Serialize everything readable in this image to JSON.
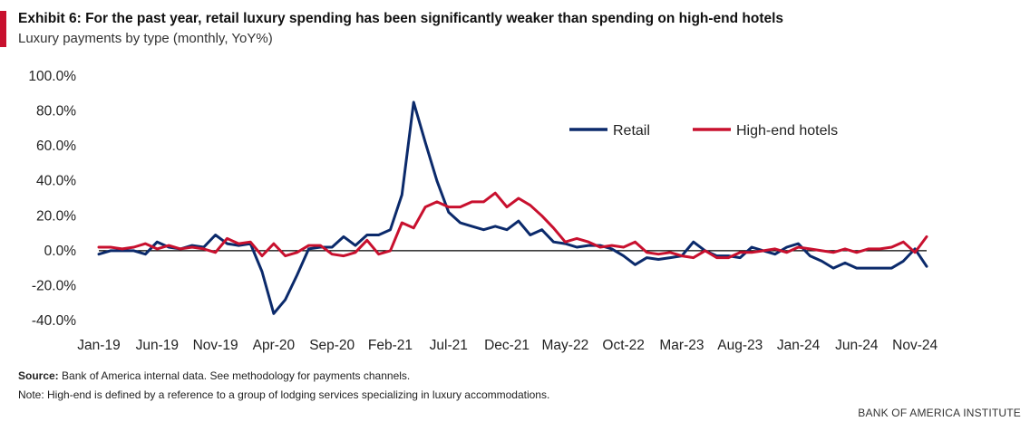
{
  "header": {
    "title": "Exhibit 6: For the past year, retail luxury spending has been significantly weaker than spending on high-end hotels",
    "subtitle": "Luxury payments by type (monthly, YoY%)"
  },
  "footer": {
    "source_label": "Source:",
    "source_text": " Bank of America internal data. See methodology for payments channels.",
    "note": "Note: High-end is defined by a reference to a group of lodging services specializing in luxury accommodations.",
    "brand": "BANK OF AMERICA INSTITUTE"
  },
  "colors": {
    "accent": "#c8102e",
    "retail": "#0b2a6b",
    "hotels": "#c8102e",
    "zero_line": "#000000"
  },
  "chart_data": {
    "type": "line",
    "title": "Exhibit 6: For the past year, retail luxury spending has been significantly weaker than spending on high-end hotels",
    "subtitle": "Luxury payments by type (monthly, YoY%)",
    "xlabel": "",
    "ylabel": "",
    "ylim": [
      -40,
      100
    ],
    "y_ticks": [
      -40,
      -20,
      0,
      20,
      40,
      60,
      80,
      100
    ],
    "y_tick_labels": [
      "-40.0%",
      "-20.0%",
      "0.0%",
      "20.0%",
      "40.0%",
      "60.0%",
      "80.0%",
      "100.0%"
    ],
    "x_tick_labels": [
      "Jan-19",
      "Jun-19",
      "Nov-19",
      "Apr-20",
      "Sep-20",
      "Feb-21",
      "Jul-21",
      "Dec-21",
      "May-22",
      "Oct-22",
      "Mar-23",
      "Aug-23",
      "Jan-24",
      "Jun-24",
      "Nov-24"
    ],
    "x_tick_every": 5,
    "x": [
      "Jan-19",
      "Feb-19",
      "Mar-19",
      "Apr-19",
      "May-19",
      "Jun-19",
      "Jul-19",
      "Aug-19",
      "Sep-19",
      "Oct-19",
      "Nov-19",
      "Dec-19",
      "Jan-20",
      "Feb-20",
      "Mar-20",
      "Apr-20",
      "May-20",
      "Jun-20",
      "Jul-20",
      "Aug-20",
      "Sep-20",
      "Oct-20",
      "Nov-20",
      "Dec-20",
      "Jan-21",
      "Feb-21",
      "Mar-21",
      "Apr-21",
      "May-21",
      "Jun-21",
      "Jul-21",
      "Aug-21",
      "Sep-21",
      "Oct-21",
      "Nov-21",
      "Dec-21",
      "Jan-22",
      "Feb-22",
      "Mar-22",
      "Apr-22",
      "May-22",
      "Jun-22",
      "Jul-22",
      "Aug-22",
      "Sep-22",
      "Oct-22",
      "Nov-22",
      "Dec-22",
      "Jan-23",
      "Feb-23",
      "Mar-23",
      "Apr-23",
      "May-23",
      "Jun-23",
      "Jul-23",
      "Aug-23",
      "Sep-23",
      "Oct-23",
      "Nov-23",
      "Dec-23",
      "Jan-24",
      "Feb-24",
      "Mar-24",
      "Apr-24",
      "May-24",
      "Jun-24",
      "Jul-24",
      "Aug-24",
      "Sep-24",
      "Oct-24",
      "Nov-24",
      "Dec-24"
    ],
    "legend": "top-right",
    "grid": false,
    "series": [
      {
        "name": "Retail",
        "color": "#0b2a6b",
        "values": [
          -2,
          0,
          0,
          0,
          -2,
          5,
          2,
          1,
          3,
          2,
          9,
          4,
          3,
          4,
          -12,
          -36,
          -28,
          -14,
          1,
          2,
          2,
          8,
          3,
          9,
          9,
          12,
          32,
          85,
          62,
          40,
          22,
          16,
          14,
          12,
          14,
          12,
          17,
          9,
          12,
          5,
          4,
          2,
          3,
          3,
          1,
          -3,
          -8,
          -4,
          -5,
          -4,
          -3,
          5,
          0,
          -3,
          -3,
          -4,
          2,
          0,
          -2,
          2,
          4,
          -3,
          -6,
          -10,
          -7,
          -10,
          -10,
          -10,
          -10,
          -6,
          1,
          -9
        ]
      },
      {
        "name": "High-end hotels",
        "color": "#c8102e",
        "values": [
          2,
          2,
          1,
          2,
          4,
          1,
          3,
          1,
          2,
          1,
          -1,
          7,
          4,
          5,
          -3,
          4,
          -3,
          -1,
          3,
          3,
          -2,
          -3,
          -1,
          6,
          -2,
          0,
          16,
          13,
          25,
          28,
          25,
          25,
          28,
          28,
          33,
          25,
          30,
          26,
          20,
          13,
          5,
          7,
          5,
          2,
          3,
          2,
          5,
          -1,
          -2,
          -1,
          -3,
          -4,
          0,
          -4,
          -4,
          -1,
          -1,
          0,
          1,
          -1,
          2,
          1,
          0,
          -1,
          1,
          -1,
          1,
          1,
          2,
          5,
          -1,
          8
        ]
      }
    ]
  }
}
